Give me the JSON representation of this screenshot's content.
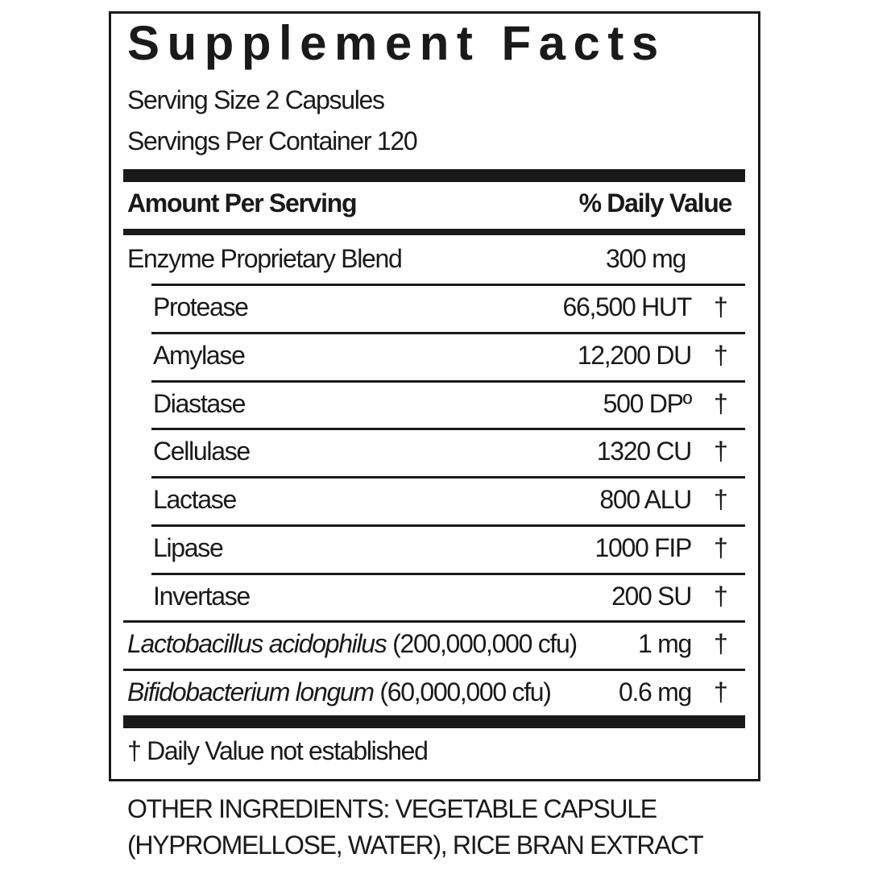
{
  "title": "Supplement Facts",
  "serving_size": "Serving Size 2 Capsules",
  "servings_per_container": "Servings Per Container 120",
  "header": {
    "amount": "Amount Per Serving",
    "dv": "% Daily Value"
  },
  "blend": {
    "name": "Enzyme Proprietary Blend",
    "amount": "300 mg"
  },
  "enzymes": [
    {
      "name": "Protease",
      "amount": "66,500 HUT",
      "dv": "†"
    },
    {
      "name": "Amylase",
      "amount": "12,200 DU",
      "dv": "†"
    },
    {
      "name": "Diastase",
      "amount": "500 DPº",
      "dv": "†"
    },
    {
      "name": "Cellulase",
      "amount": "1320 CU",
      "dv": "†"
    },
    {
      "name": "Lactase",
      "amount": "800 ALU",
      "dv": "†"
    },
    {
      "name": "Lipase",
      "amount": "1000 FIP",
      "dv": "†"
    },
    {
      "name": "Invertase",
      "amount": "200 SU",
      "dv": "†"
    }
  ],
  "probiotics": [
    {
      "name": "Lactobacillus acidophilus",
      "cfu": "(200,000,000 cfu)",
      "amount": "1 mg",
      "dv": "†"
    },
    {
      "name": "Bifidobacterium longum",
      "cfu": "(60,000,000 cfu)",
      "amount": "0.6 mg",
      "dv": "†"
    }
  ],
  "footnote": "† Daily Value not established",
  "other_ingredients": [
    "OTHER INGREDIENTS: VEGETABLE CAPSULE",
    "(HYPROMELLOSE, WATER), RICE BRAN EXTRACT"
  ]
}
